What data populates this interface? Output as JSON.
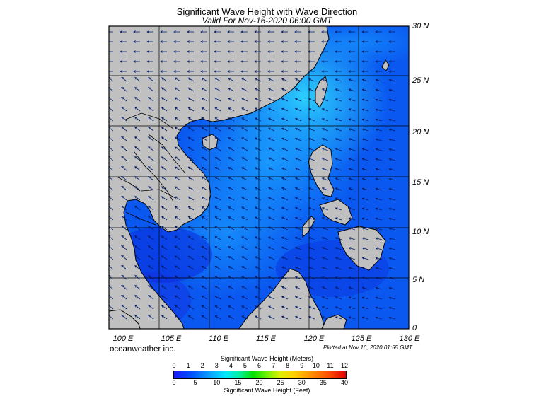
{
  "title": "Significant Wave Height with Wave Direction",
  "subtitle": "Valid For Nov-16-2020 06:00 GMT",
  "map": {
    "lon_range": [
      100,
      130
    ],
    "lat_range": [
      0,
      30
    ],
    "land_color": "#c0c0c0",
    "sea_color": "#0a58f0",
    "grid": true
  },
  "lat_labels": [
    "30 N",
    "25 N",
    "20 N",
    "15 N",
    "10 N",
    "5 N",
    "0"
  ],
  "lon_labels": [
    "100 E",
    "105 E",
    "110 E",
    "115 E",
    "120 E",
    "125 E",
    "130 E"
  ],
  "company": "oceanweather inc.",
  "plotted": "Plotted at Nov 16, 2020 01:55 GMT",
  "legend": {
    "title_top": "Significant Wave Height (Meters)",
    "title_bottom": "Significant Wave Height (Feet)",
    "meters": [
      "0",
      "1",
      "2",
      "3",
      "4",
      "5",
      "6",
      "7",
      "8",
      "9",
      "10",
      "11",
      "12"
    ],
    "feet": [
      "0",
      "5",
      "10",
      "15",
      "20",
      "25",
      "30",
      "35",
      "40"
    ]
  }
}
